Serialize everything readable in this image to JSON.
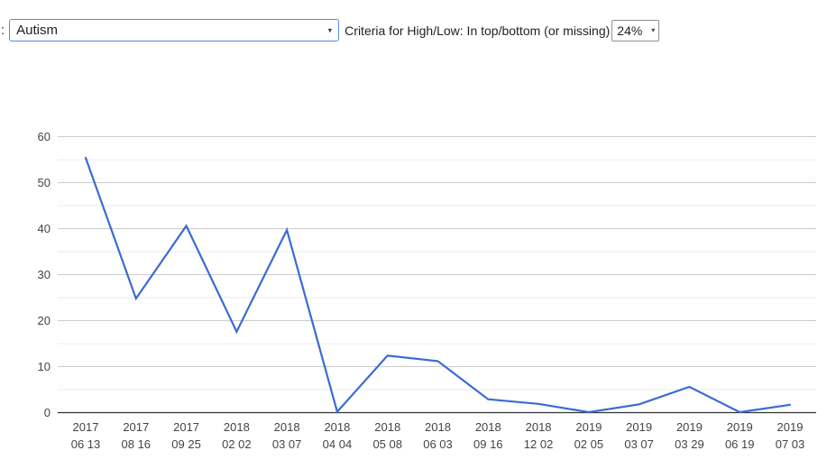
{
  "header": {
    "label_fragment": ":",
    "disease_select": {
      "value": "Autism"
    },
    "criteria_label": "Criteria for High/Low: In top/bottom (or missing)",
    "threshold_select": {
      "value": "24%"
    }
  },
  "icons": {
    "dropdown_arrow": "▾"
  },
  "chart_data": {
    "type": "line",
    "title": "",
    "xlabel": "",
    "ylabel": "",
    "categories": [
      "2017 06 13",
      "2017 08 16",
      "2017 09 25",
      "2018 02 02",
      "2018 03 07",
      "2018 04 04",
      "2018 05 08",
      "2018 06 03",
      "2018 09 16",
      "2018 12 02",
      "2019 02 05",
      "2019 03 07",
      "2019 03 29",
      "2019 06 19",
      "2019 07 03"
    ],
    "values": [
      55.4,
      24.8,
      40.6,
      17.6,
      39.7,
      0.2,
      12.4,
      11.2,
      2.9,
      1.9,
      0.1,
      1.8,
      5.6,
      0.1,
      1.7
    ],
    "ylim": [
      0,
      60
    ],
    "ytick_step": 10,
    "minor_gridline_step": 5,
    "yticks": [
      0,
      10,
      20,
      30,
      40,
      50,
      60
    ],
    "grid": "on",
    "legend": "none",
    "line_color": "#3a6bd2",
    "major_grid_color": "#cccccc",
    "minor_grid_color": "#ebebeb",
    "axis_color": "#333333",
    "label_color": "#444444"
  }
}
